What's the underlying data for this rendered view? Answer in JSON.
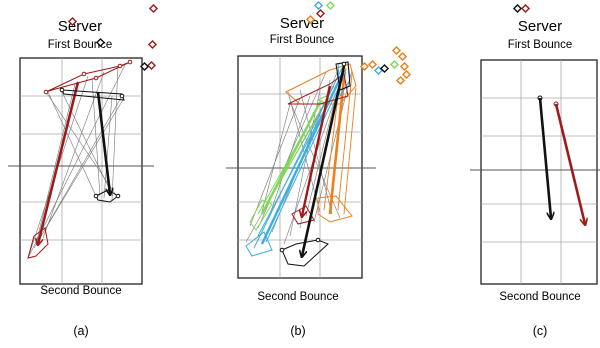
{
  "panels": [
    {
      "id": "a",
      "title": "Server",
      "top_label": "First Bounce",
      "bottom_label": "Second Bounce",
      "caption": "(a)"
    },
    {
      "id": "b",
      "title": "Server",
      "top_label": "First Bounce",
      "bottom_label": "Second Bounce",
      "caption": "(b)"
    },
    {
      "id": "c",
      "title": "Server",
      "top_label": "First Bounce",
      "bottom_label": "Second Bounce",
      "caption": "(c)"
    }
  ],
  "colors": {
    "black": "#111111",
    "red": "#9e1a1a",
    "orange": "#f07e1a",
    "green": "#7ed957",
    "cyan": "#3aaee0",
    "grey": "#666666",
    "grid": "#aaaaaa"
  }
}
